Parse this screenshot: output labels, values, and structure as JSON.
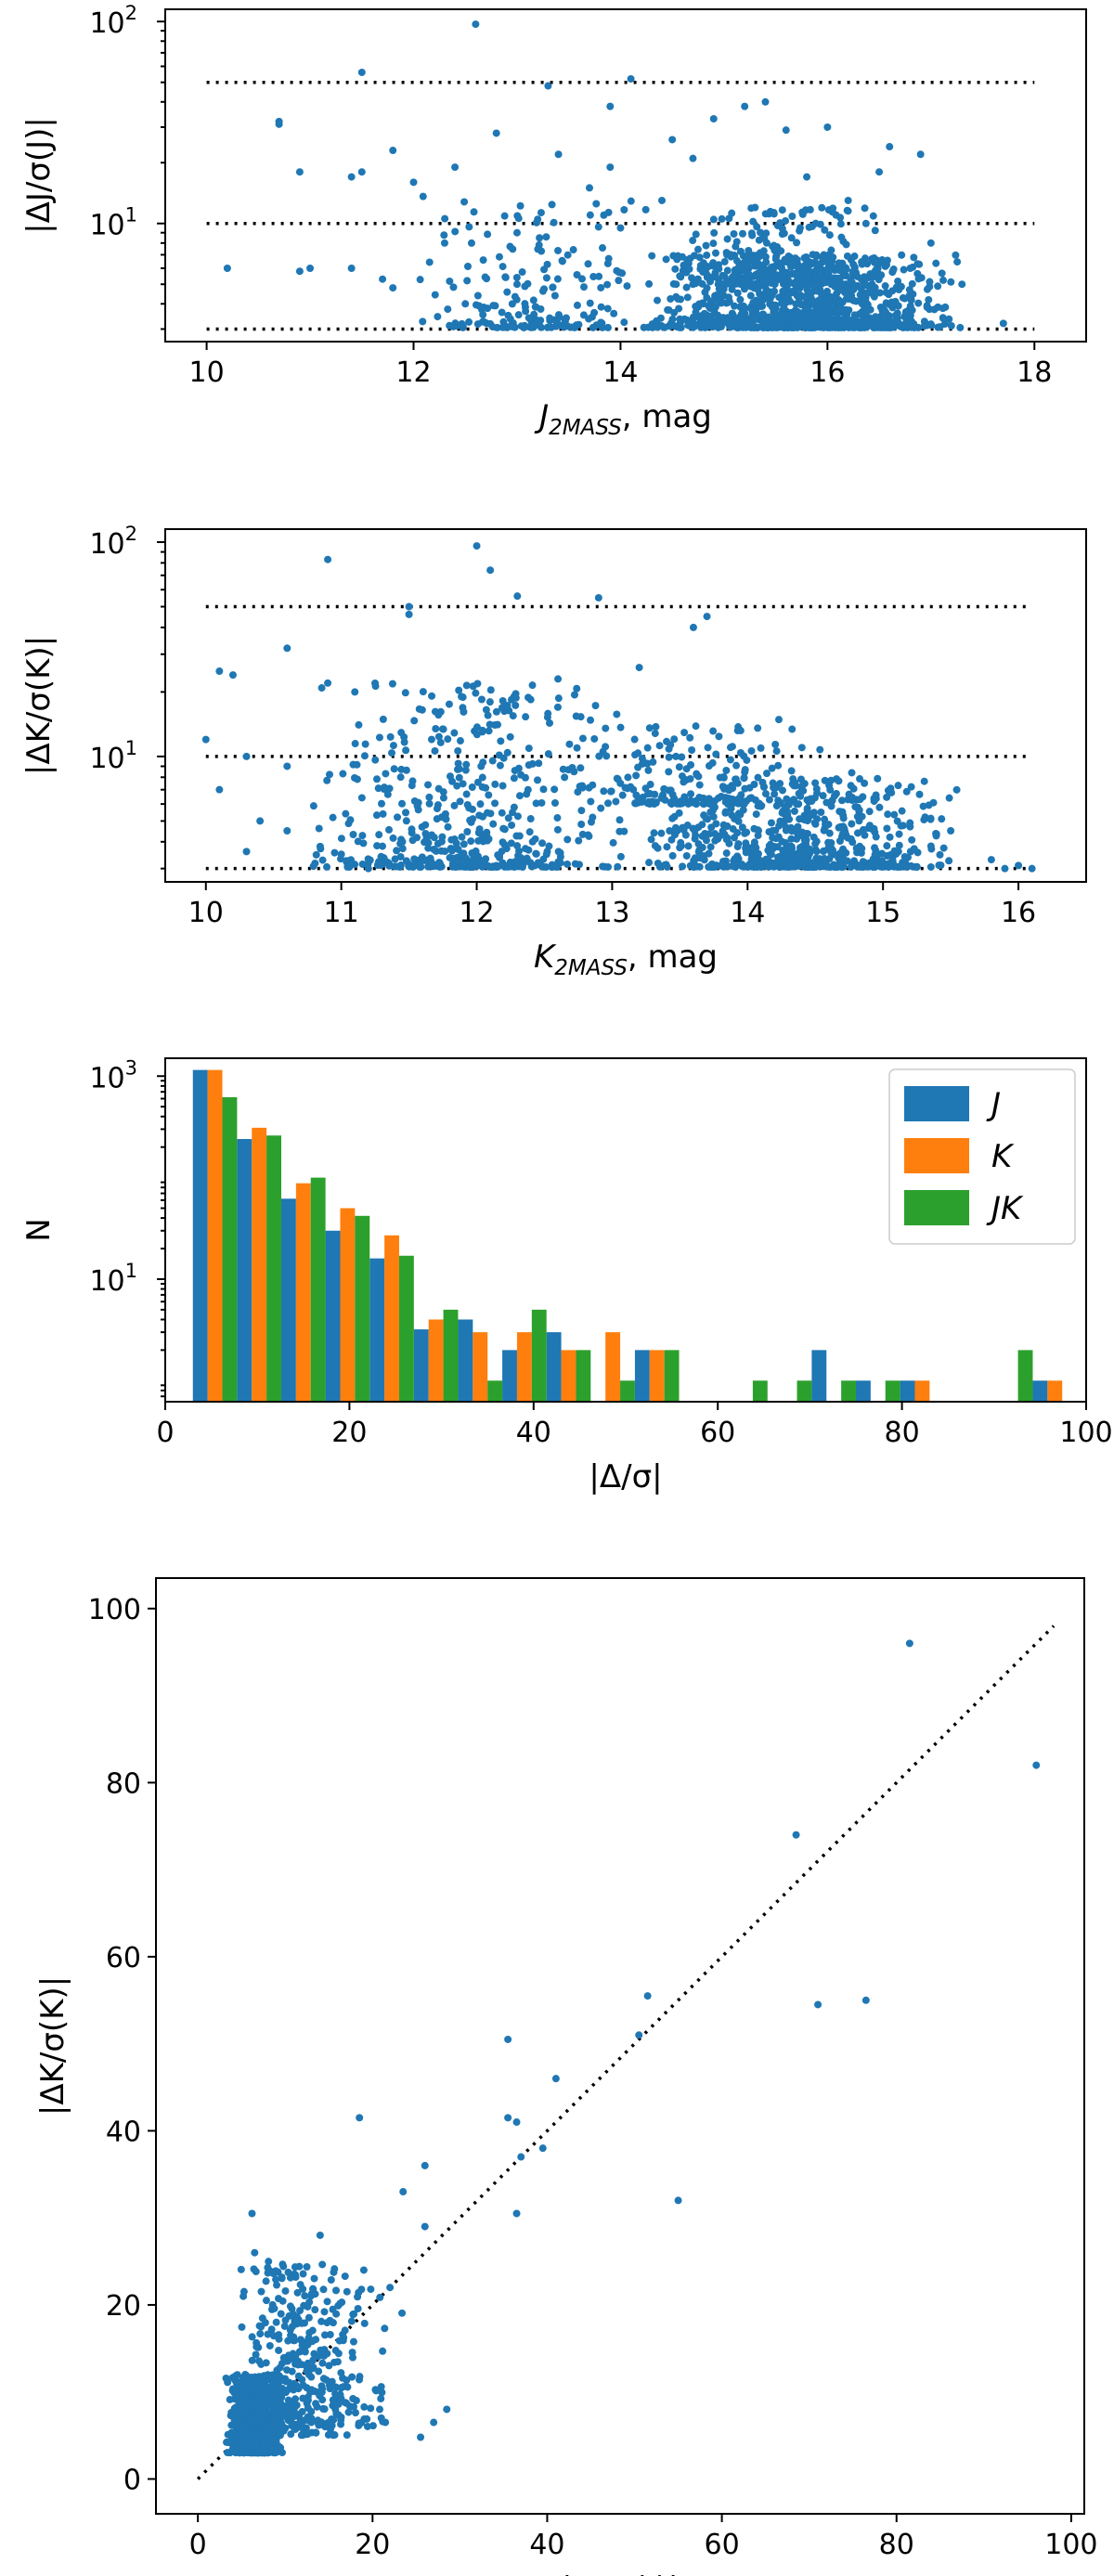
{
  "chart_data": [
    {
      "id": "panel-a",
      "type": "scatter",
      "xlabel_base": "J",
      "xlabel_sub": "2MASS",
      "xlabel_suffix": ", mag",
      "ylabel": "|ΔJ/σ(J)|",
      "xlim": [
        9.6,
        18.5
      ],
      "ylim": [
        2.6,
        115
      ],
      "yscale": "log",
      "xticks": [
        10,
        12,
        14,
        16,
        18
      ],
      "xtick_labels": [
        "10",
        "12",
        "14",
        "16",
        "18"
      ],
      "yticks": [
        10,
        100
      ],
      "ytick_bases": [
        "10",
        "10"
      ],
      "ytick_exps": [
        "1",
        "2"
      ],
      "ref_lines_y": [
        3,
        10,
        50
      ],
      "ref_x": [
        10,
        18
      ],
      "color": "#1f77b4",
      "points": [
        [
          12.6,
          97
        ],
        [
          11.5,
          56
        ],
        [
          13.3,
          48
        ],
        [
          14.1,
          52
        ],
        [
          15.4,
          40
        ],
        [
          15.2,
          38
        ],
        [
          10.7,
          32
        ],
        [
          10.7,
          31
        ],
        [
          13.9,
          38
        ],
        [
          14.9,
          33
        ],
        [
          16.0,
          30
        ],
        [
          15.6,
          29
        ],
        [
          12.8,
          28
        ],
        [
          14.5,
          26
        ],
        [
          16.6,
          24
        ],
        [
          16.9,
          22
        ],
        [
          11.8,
          23
        ],
        [
          13.4,
          22
        ],
        [
          10.9,
          18
        ],
        [
          13.9,
          19
        ],
        [
          11.4,
          17
        ],
        [
          11.5,
          18
        ],
        [
          12.4,
          19
        ],
        [
          12.0,
          16
        ],
        [
          14.7,
          21
        ],
        [
          15.8,
          17
        ],
        [
          16.5,
          18
        ],
        [
          13.7,
          15
        ],
        [
          14.4,
          13
        ],
        [
          15.3,
          12
        ],
        [
          16.2,
          13
        ],
        [
          10.2,
          6
        ],
        [
          11.0,
          6
        ],
        [
          11.4,
          6
        ],
        [
          10.9,
          5.8
        ],
        [
          11.7,
          5.3
        ],
        [
          11.8,
          4.8
        ],
        [
          13.0,
          9
        ],
        [
          12.3,
          8
        ],
        [
          14.0,
          9.5
        ],
        [
          17.0,
          8
        ],
        [
          16.8,
          6
        ],
        [
          17.3,
          5
        ],
        [
          17.7,
          3.2
        ],
        [
          13.0,
          5
        ],
        [
          12.5,
          4
        ]
      ],
      "clusters": [
        {
          "x": [
            14.2,
            17.3
          ],
          "y": [
            3.05,
            7.0
          ],
          "n": 1050
        },
        {
          "x": [
            14.4,
            16.6
          ],
          "y": [
            5.0,
            12.0
          ],
          "n": 280
        },
        {
          "x": [
            12.0,
            14.4
          ],
          "y": [
            3.05,
            14.0
          ],
          "n": 190
        }
      ],
      "seed": 11
    },
    {
      "id": "panel-b",
      "type": "scatter",
      "xlabel_base": "K",
      "xlabel_sub": "2MASS",
      "xlabel_suffix": ", mag",
      "ylabel": "|ΔK/σ(K)|",
      "xlim": [
        9.7,
        16.5
      ],
      "ylim": [
        2.6,
        115
      ],
      "yscale": "log",
      "xticks": [
        10,
        11,
        12,
        13,
        14,
        15,
        16
      ],
      "xtick_labels": [
        "10",
        "11",
        "12",
        "13",
        "14",
        "15",
        "16"
      ],
      "yticks": [
        10,
        100
      ],
      "ytick_bases": [
        "10",
        "10"
      ],
      "ytick_exps": [
        "1",
        "2"
      ],
      "ref_lines_y": [
        3,
        10,
        50
      ],
      "ref_x": [
        10,
        16.1
      ],
      "color": "#1f77b4",
      "points": [
        [
          12.0,
          96
        ],
        [
          10.9,
          83
        ],
        [
          12.1,
          74
        ],
        [
          12.3,
          56
        ],
        [
          12.9,
          55
        ],
        [
          11.5,
          50
        ],
        [
          11.5,
          46
        ],
        [
          13.7,
          45
        ],
        [
          13.6,
          40
        ],
        [
          10.6,
          32
        ],
        [
          10.2,
          24
        ],
        [
          10.1,
          25
        ],
        [
          10.9,
          22
        ],
        [
          11.1,
          20
        ],
        [
          12.6,
          23
        ],
        [
          13.2,
          26
        ],
        [
          10.0,
          12
        ],
        [
          10.3,
          10
        ],
        [
          10.6,
          9
        ],
        [
          10.1,
          7
        ],
        [
          10.4,
          5
        ],
        [
          10.6,
          4.5
        ],
        [
          10.3,
          3.6
        ],
        [
          11.0,
          3.5
        ],
        [
          11.2,
          3.0
        ],
        [
          15.5,
          4.5
        ],
        [
          15.8,
          3.3
        ],
        [
          16.0,
          3.1
        ],
        [
          16.1,
          3.0
        ],
        [
          15.9,
          3.0
        ]
      ],
      "clusters": [
        {
          "x": [
            13.2,
            15.6
          ],
          "y": [
            3.05,
            8.0
          ],
          "n": 650
        },
        {
          "x": [
            10.7,
            13.2
          ],
          "y": [
            3.05,
            22.0
          ],
          "n": 520
        },
        {
          "x": [
            12.6,
            14.8
          ],
          "y": [
            6.0,
            15.0
          ],
          "n": 200
        }
      ],
      "seed": 23
    },
    {
      "id": "panel-c",
      "type": "bar",
      "xlabel": "|Δ/σ|",
      "ylabel": "N",
      "xlim": [
        0,
        100
      ],
      "ylim": [
        0.62,
        1500
      ],
      "yscale": "log",
      "xticks": [
        0,
        20,
        40,
        60,
        80,
        100
      ],
      "xtick_labels": [
        "0",
        "20",
        "40",
        "60",
        "80",
        "100"
      ],
      "yticks": [
        10,
        1000
      ],
      "ytick_bases": [
        "10",
        "10"
      ],
      "ytick_exps": [
        "1",
        "3"
      ],
      "bin_start": 3,
      "bin_width": 4.8,
      "legend_position": "top-right",
      "series": [
        {
          "name": "J",
          "color": "#1f77b4",
          "values": [
            1150,
            240,
            62,
            30,
            16,
            3.2,
            4,
            2,
            3,
            0,
            2,
            0,
            0,
            0,
            2,
            1,
            1,
            0,
            0,
            1
          ]
        },
        {
          "name": "K",
          "color": "#ff7f0e",
          "values": [
            1150,
            310,
            88,
            50,
            27,
            4,
            3,
            3,
            2,
            3,
            2,
            0,
            0,
            0,
            0,
            0,
            1,
            0,
            0,
            1
          ]
        },
        {
          "name": "JK",
          "color": "#2ca02c",
          "values": [
            620,
            260,
            100,
            42,
            17,
            5,
            1,
            5,
            2,
            1,
            2,
            0,
            1,
            1,
            1,
            1,
            0,
            0,
            2,
            0
          ]
        }
      ]
    },
    {
      "id": "panel-d",
      "type": "scatter",
      "xlabel": "|ΔJ/σ(J)|",
      "ylabel": "|ΔK/σ(K)|",
      "xlim": [
        -4.8,
        101.5
      ],
      "ylim": [
        -4.0,
        103.5
      ],
      "yscale": "linear",
      "xticks": [
        0,
        20,
        40,
        60,
        80,
        100
      ],
      "xtick_labels": [
        "0",
        "20",
        "40",
        "60",
        "80",
        "100"
      ],
      "yticks": [
        0,
        20,
        40,
        60,
        80,
        100
      ],
      "ytick_labels": [
        "0",
        "20",
        "40",
        "60",
        "80",
        "100"
      ],
      "ref_line": [
        [
          0,
          0
        ],
        [
          98,
          98
        ]
      ],
      "color": "#1f77b4",
      "points": [
        [
          81.5,
          96
        ],
        [
          96,
          82
        ],
        [
          68.5,
          74
        ],
        [
          76.5,
          55
        ],
        [
          71,
          54.5
        ],
        [
          51.5,
          55.5
        ],
        [
          55,
          32
        ],
        [
          50.5,
          51
        ],
        [
          35.5,
          50.5
        ],
        [
          35.5,
          41.5
        ],
        [
          36.5,
          41
        ],
        [
          39.5,
          38
        ],
        [
          37,
          37
        ],
        [
          41,
          46
        ],
        [
          36.5,
          30.5
        ],
        [
          18.5,
          41.5
        ],
        [
          26,
          36
        ],
        [
          23.5,
          33
        ],
        [
          26,
          29
        ],
        [
          6.2,
          30.5
        ],
        [
          6.5,
          26
        ],
        [
          21,
          7
        ],
        [
          28.5,
          8
        ],
        [
          25.5,
          4.8
        ],
        [
          27,
          6.5
        ],
        [
          14,
          28
        ],
        [
          19,
          24
        ],
        [
          22,
          22
        ]
      ],
      "clusters": [
        {
          "x": [
            3.0,
            10.0
          ],
          "y": [
            3.0,
            12.0
          ],
          "n": 700
        },
        {
          "x": [
            4.0,
            18.0
          ],
          "y": [
            5.0,
            25.0
          ],
          "n": 300
        },
        {
          "x": [
            8.0,
            24.0
          ],
          "y": [
            6.0,
            22.0
          ],
          "n": 120
        }
      ],
      "seed": 37
    }
  ]
}
